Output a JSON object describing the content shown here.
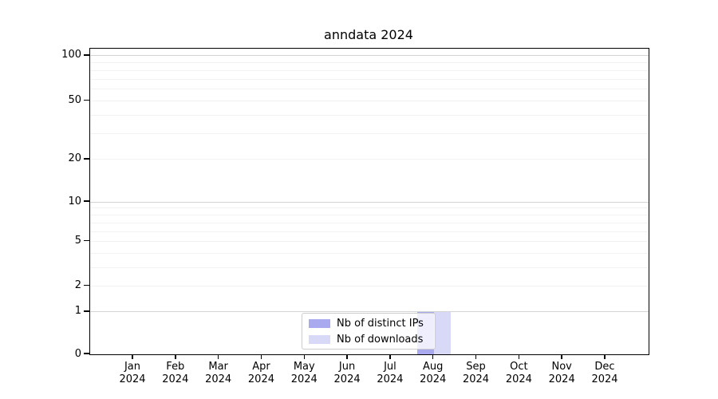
{
  "chart_data": {
    "type": "bar",
    "title": "anndata 2024",
    "categories": [
      "Jan 2024",
      "Feb 2024",
      "Mar 2024",
      "Apr 2024",
      "May 2024",
      "Jun 2024",
      "Jul 2024",
      "Aug 2024",
      "Sep 2024",
      "Oct 2024",
      "Nov 2024",
      "Dec 2024"
    ],
    "series": [
      {
        "name": "Nb of distinct IPs",
        "color": "#a9a9f0",
        "values": [
          0,
          0,
          0,
          0,
          0,
          0,
          0,
          1,
          0,
          0,
          0,
          0
        ]
      },
      {
        "name": "Nb of downloads",
        "color": "#d8d8f7",
        "values": [
          0,
          0,
          0,
          0,
          0,
          0,
          0,
          1,
          0,
          0,
          0,
          0
        ]
      }
    ],
    "xlabel": "",
    "ylabel": "",
    "yscale": "symlog",
    "ylim": [
      0,
      111
    ],
    "y_tick_values": [
      0,
      1,
      2,
      5,
      10,
      20,
      50,
      100
    ],
    "y_tick_labels": [
      "0",
      "1",
      "2",
      "5",
      "10",
      "20",
      "50",
      "100"
    ],
    "y_major_gridlines": [
      1,
      10,
      100
    ],
    "y_minor_gridlines": [
      2,
      3,
      4,
      5,
      6,
      7,
      8,
      9,
      20,
      30,
      40,
      50,
      60,
      70,
      80,
      90
    ],
    "grid": true,
    "legend_position": "lower center",
    "colors": {
      "major_grid": "#d4d4d4",
      "minor_grid": "#f2f2f2",
      "axis": "#000000",
      "text": "#000000",
      "legend_border": "#cccccc",
      "legend_background": "rgba(255,255,255,0.8)"
    }
  }
}
